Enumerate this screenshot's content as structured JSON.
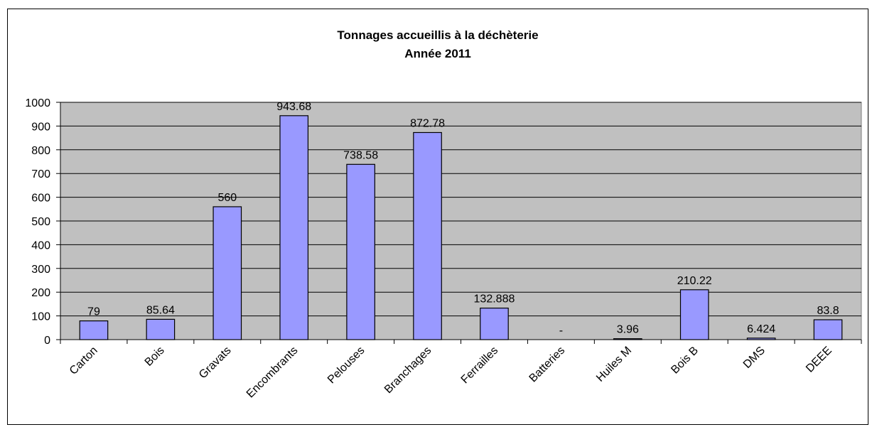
{
  "chart_data": {
    "type": "bar",
    "title": "Tonnages accueillis à la déchèterie",
    "subtitle": "Année 2011",
    "categories": [
      "Carton",
      "Bois",
      "Gravats",
      "Encombrants",
      "Pelouses",
      "Branchages",
      "Ferrailles",
      "Batteries",
      "Huiles M",
      "Bois B",
      "DMS",
      "DEEE"
    ],
    "values": [
      79,
      85.64,
      560,
      943.68,
      738.58,
      872.78,
      132.888,
      0,
      3.96,
      210.22,
      6.424,
      83.8
    ],
    "value_labels": [
      "79",
      "85.64",
      "560",
      "943.68",
      "738.58",
      "872.78",
      "132.888",
      "-",
      "3.96",
      "210.22",
      "6.424",
      "83.8"
    ],
    "color": "#9999ff",
    "ylim": [
      0,
      1000
    ],
    "yticks": [
      0,
      100,
      200,
      300,
      400,
      500,
      600,
      700,
      800,
      900,
      1000
    ],
    "grid": true
  }
}
